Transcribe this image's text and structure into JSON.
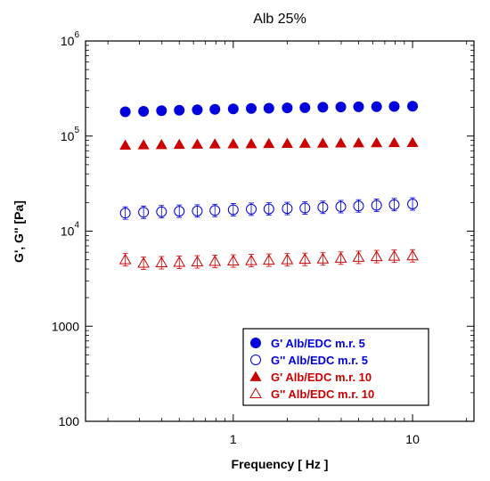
{
  "chart_data": {
    "type": "scatter",
    "title": "Alb 25%",
    "xlabel": "Frequency [ Hz ]",
    "ylabel": "G', G'' [Pa]",
    "x_scale": "log",
    "y_scale": "log",
    "xlim": [
      0.15,
      22
    ],
    "ylim": [
      100,
      1000000
    ],
    "x_ticks": [
      {
        "value": 1,
        "base": "1",
        "exp": ""
      },
      {
        "value": 10,
        "base": "10",
        "exp": ""
      }
    ],
    "y_ticks": [
      {
        "value": 100,
        "base": "100",
        "exp": ""
      },
      {
        "value": 1000,
        "base": "1000",
        "exp": ""
      },
      {
        "value": 10000,
        "base": "10",
        "exp": "4"
      },
      {
        "value": 100000,
        "base": "10",
        "exp": "5"
      },
      {
        "value": 1000000,
        "base": "10",
        "exp": "6"
      }
    ],
    "grid": false,
    "legend_position": "bottom-right",
    "x": [
      0.25,
      0.316,
      0.398,
      0.5,
      0.63,
      0.79,
      1.0,
      1.26,
      1.58,
      2.0,
      2.51,
      3.16,
      3.98,
      5.0,
      6.3,
      7.9,
      10.0
    ],
    "series": [
      {
        "name": "G' Alb/EDC m.r. 5",
        "marker": "circle-filled",
        "color": "#0000dd",
        "values": [
          180000,
          182000,
          185000,
          187000,
          189000,
          191000,
          193000,
          195000,
          196000,
          198000,
          199000,
          201000,
          202000,
          203000,
          204000,
          205000,
          206000
        ]
      },
      {
        "name": "G'' Alb/EDC m.r. 5",
        "marker": "circle-open",
        "color": "#0000dd",
        "values": [
          15500,
          15800,
          16000,
          16200,
          16300,
          16500,
          16800,
          17000,
          17100,
          17300,
          17500,
          17800,
          18100,
          18400,
          18700,
          19000,
          19300
        ]
      },
      {
        "name": "G' Alb/EDC m.r. 10",
        "marker": "triangle-filled",
        "color": "#cc0000",
        "values": [
          80000,
          80500,
          81000,
          81500,
          82000,
          82300,
          82600,
          82900,
          83200,
          83500,
          83800,
          84000,
          84300,
          84600,
          84800,
          85100,
          85400
        ]
      },
      {
        "name": "G'' Alb/EDC m.r. 10",
        "marker": "triangle-open",
        "color": "#cc0000",
        "values": [
          5000,
          4600,
          4650,
          4700,
          4750,
          4800,
          4850,
          4900,
          4950,
          5000,
          5050,
          5100,
          5200,
          5300,
          5400,
          5450,
          5500
        ]
      }
    ]
  }
}
